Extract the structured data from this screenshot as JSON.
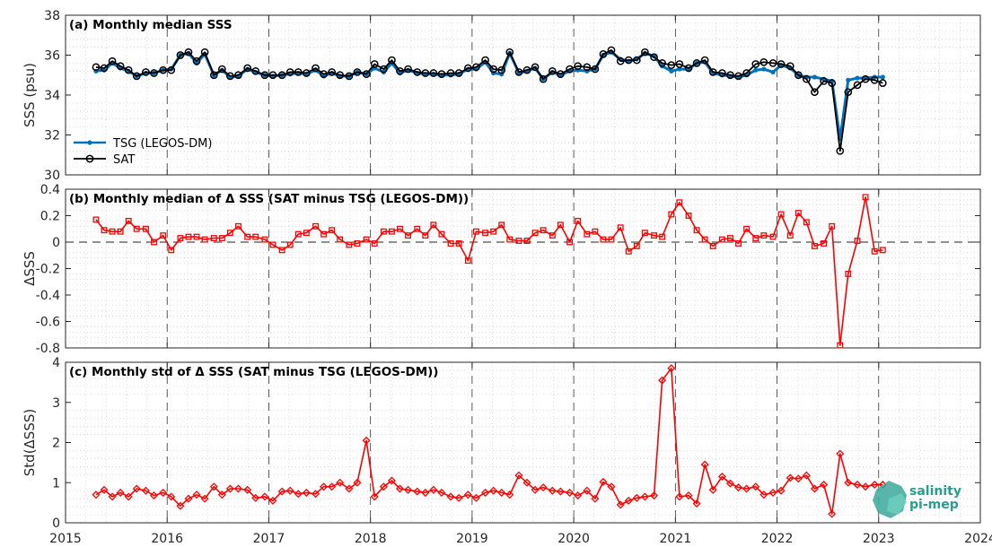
{
  "logo": {
    "line1": "salinity",
    "line2": "pi-mep",
    "color": "#3aa89a"
  },
  "chart_data": [
    {
      "type": "line",
      "title": "(a) Monthly median SSS",
      "xlabel": "",
      "ylabel": "SSS (psu)",
      "xlim": [
        2015,
        2024
      ],
      "ylim": [
        30,
        38
      ],
      "yticks": [
        30,
        32,
        34,
        36,
        38
      ],
      "xticks": [
        2015,
        2016,
        2017,
        2018,
        2019,
        2020,
        2021,
        2022,
        2023,
        2024
      ],
      "grid": true,
      "legend": "lower-left",
      "x": [
        2015.3,
        2015.38,
        2015.46,
        2015.54,
        2015.62,
        2015.7,
        2015.79,
        2015.87,
        2015.96,
        2016.04,
        2016.13,
        2016.21,
        2016.29,
        2016.37,
        2016.46,
        2016.54,
        2016.62,
        2016.7,
        2016.79,
        2016.87,
        2016.96,
        2017.04,
        2017.13,
        2017.21,
        2017.29,
        2017.37,
        2017.46,
        2017.54,
        2017.62,
        2017.7,
        2017.79,
        2017.87,
        2017.96,
        2018.04,
        2018.13,
        2018.21,
        2018.29,
        2018.37,
        2018.46,
        2018.54,
        2018.62,
        2018.7,
        2018.79,
        2018.87,
        2018.96,
        2019.04,
        2019.13,
        2019.21,
        2019.29,
        2019.37,
        2019.46,
        2019.54,
        2019.62,
        2019.7,
        2019.79,
        2019.87,
        2019.96,
        2020.04,
        2020.13,
        2020.21,
        2020.29,
        2020.37,
        2020.46,
        2020.54,
        2020.62,
        2020.7,
        2020.79,
        2020.87,
        2020.96,
        2021.04,
        2021.13,
        2021.21,
        2021.29,
        2021.37,
        2021.46,
        2021.54,
        2021.62,
        2021.7,
        2021.79,
        2021.87,
        2021.96,
        2022.04,
        2022.13,
        2022.21,
        2022.29,
        2022.37,
        2022.46,
        2022.54,
        2022.62,
        2022.7,
        2022.79,
        2022.87,
        2022.96,
        2023.04
      ],
      "series": [
        {
          "name": "TSG (LEGOS-DM)",
          "color": "#0072BD",
          "marker": "dot",
          "values": [
            35.2,
            35.25,
            35.6,
            35.35,
            35.2,
            34.95,
            35.1,
            35.1,
            35.25,
            35.3,
            36.0,
            36.1,
            35.6,
            36.05,
            35.0,
            35.25,
            34.9,
            34.95,
            35.3,
            35.15,
            35.0,
            34.95,
            35.0,
            35.05,
            35.1,
            35.05,
            35.25,
            34.95,
            35.1,
            34.95,
            34.95,
            35.15,
            35.05,
            35.35,
            35.15,
            35.6,
            35.1,
            35.25,
            35.1,
            35.05,
            35.05,
            35.0,
            35.0,
            35.05,
            35.3,
            35.3,
            35.65,
            35.1,
            35.05,
            36.1,
            35.1,
            35.2,
            35.35,
            34.8,
            35.15,
            35.0,
            35.2,
            35.25,
            35.2,
            35.3,
            36.0,
            36.15,
            35.8,
            35.7,
            35.8,
            36.1,
            35.95,
            35.45,
            35.2,
            35.3,
            35.3,
            35.6,
            35.65,
            35.1,
            35.0,
            34.95,
            34.9,
            35.0,
            35.25,
            35.3,
            35.15,
            35.5,
            35.35,
            35.0,
            34.9,
            34.9,
            34.8,
            34.7,
            31.8,
            34.75,
            34.85,
            34.85,
            34.9,
            34.9
          ]
        },
        {
          "name": "SAT",
          "color": "#000000",
          "marker": "circle",
          "values": [
            35.4,
            35.35,
            35.7,
            35.45,
            35.25,
            34.95,
            35.15,
            35.1,
            35.25,
            35.25,
            36.0,
            36.15,
            35.7,
            36.15,
            35.0,
            35.3,
            34.95,
            35.0,
            35.35,
            35.2,
            35.0,
            35.0,
            35.0,
            35.15,
            35.15,
            35.1,
            35.35,
            35.05,
            35.15,
            35.0,
            34.95,
            35.15,
            35.05,
            35.55,
            35.3,
            35.75,
            35.2,
            35.3,
            35.15,
            35.1,
            35.1,
            35.05,
            35.1,
            35.1,
            35.35,
            35.4,
            35.75,
            35.3,
            35.25,
            36.15,
            35.15,
            35.25,
            35.4,
            34.8,
            35.2,
            35.05,
            35.3,
            35.45,
            35.4,
            35.3,
            36.05,
            36.25,
            35.7,
            35.75,
            35.75,
            36.15,
            35.9,
            35.6,
            35.5,
            35.55,
            35.35,
            35.6,
            35.75,
            35.15,
            35.1,
            35.0,
            34.95,
            35.1,
            35.55,
            35.65,
            35.6,
            35.55,
            35.45,
            35.0,
            34.8,
            34.15,
            34.7,
            34.6,
            31.2,
            34.15,
            34.5,
            34.8,
            34.75,
            34.6
          ]
        }
      ]
    },
    {
      "type": "line",
      "title": "(b) Monthly median of Δ SSS (SAT minus TSG (LEGOS-DM))",
      "xlabel": "",
      "ylabel": "ΔSSS",
      "xlim": [
        2015,
        2024
      ],
      "ylim": [
        -0.8,
        0.4
      ],
      "yticks": [
        -0.8,
        -0.6,
        -0.4,
        -0.2,
        0,
        0.2,
        0.4
      ],
      "ytick_labels": [
        "-0.8",
        "-0.6",
        "-0.4",
        "-0.2",
        "0",
        "0.2",
        "0.4"
      ],
      "grid": true,
      "zero_line": true,
      "series": [
        {
          "name": "",
          "color": "#ff0000",
          "marker": "square",
          "values": [
            0.17,
            0.09,
            0.08,
            0.08,
            0.16,
            0.1,
            0.1,
            0.0,
            0.05,
            -0.06,
            0.03,
            0.04,
            0.04,
            0.02,
            0.03,
            0.03,
            0.07,
            0.12,
            0.04,
            0.04,
            0.02,
            -0.02,
            -0.06,
            -0.02,
            0.06,
            0.07,
            0.12,
            0.06,
            0.09,
            0.02,
            -0.02,
            -0.01,
            0.02,
            -0.01,
            0.08,
            0.08,
            0.1,
            0.05,
            0.1,
            0.05,
            0.13,
            0.06,
            -0.01,
            -0.01,
            -0.14,
            0.08,
            0.07,
            0.08,
            0.13,
            0.02,
            0.01,
            0.01,
            0.07,
            0.09,
            0.05,
            0.13,
            0.0,
            0.16,
            0.06,
            0.08,
            0.02,
            0.02,
            0.11,
            -0.07,
            -0.03,
            0.07,
            0.05,
            0.04,
            0.21,
            0.3,
            0.2,
            0.09,
            0.02,
            -0.03,
            0.02,
            0.03,
            -0.01,
            0.1,
            0.03,
            0.05,
            0.04,
            0.21,
            0.05,
            0.22,
            0.15,
            -0.03,
            -0.01,
            0.12,
            -0.78,
            -0.24,
            0.01,
            0.34,
            -0.07,
            -0.06
          ]
        }
      ]
    },
    {
      "type": "line",
      "title": "(c) Monthly std of Δ SSS (SAT minus TSG (LEGOS-DM))",
      "xlabel": "",
      "ylabel": "Std(ΔSSS)",
      "xlim": [
        2015,
        2024
      ],
      "ylim": [
        0,
        4
      ],
      "yticks": [
        0,
        1,
        2,
        3,
        4
      ],
      "xtick_labels": [
        "2015",
        "2016",
        "2017",
        "2018",
        "2019",
        "2020",
        "2021",
        "2022",
        "2023",
        "2024"
      ],
      "grid": true,
      "series": [
        {
          "name": "",
          "color": "#ff0000",
          "marker": "diamond",
          "values": [
            0.7,
            0.82,
            0.65,
            0.75,
            0.65,
            0.85,
            0.8,
            0.68,
            0.75,
            0.65,
            0.42,
            0.6,
            0.7,
            0.6,
            0.9,
            0.7,
            0.85,
            0.85,
            0.82,
            0.62,
            0.65,
            0.55,
            0.78,
            0.8,
            0.72,
            0.75,
            0.72,
            0.9,
            0.9,
            1.0,
            0.85,
            1.0,
            2.05,
            0.65,
            0.9,
            1.05,
            0.85,
            0.82,
            0.78,
            0.75,
            0.82,
            0.75,
            0.65,
            0.62,
            0.7,
            0.62,
            0.75,
            0.8,
            0.75,
            0.7,
            1.18,
            1.0,
            0.82,
            0.88,
            0.8,
            0.78,
            0.75,
            0.68,
            0.8,
            0.6,
            1.02,
            0.9,
            0.45,
            0.55,
            0.62,
            0.65,
            0.68,
            3.55,
            3.85,
            0.65,
            0.68,
            0.48,
            1.45,
            0.82,
            1.15,
            0.98,
            0.88,
            0.85,
            0.9,
            0.7,
            0.75,
            0.8,
            1.12,
            1.1,
            1.18,
            0.85,
            0.95,
            0.22,
            1.72,
            1.0,
            0.95,
            0.9,
            0.95,
            0.95
          ]
        }
      ]
    }
  ]
}
